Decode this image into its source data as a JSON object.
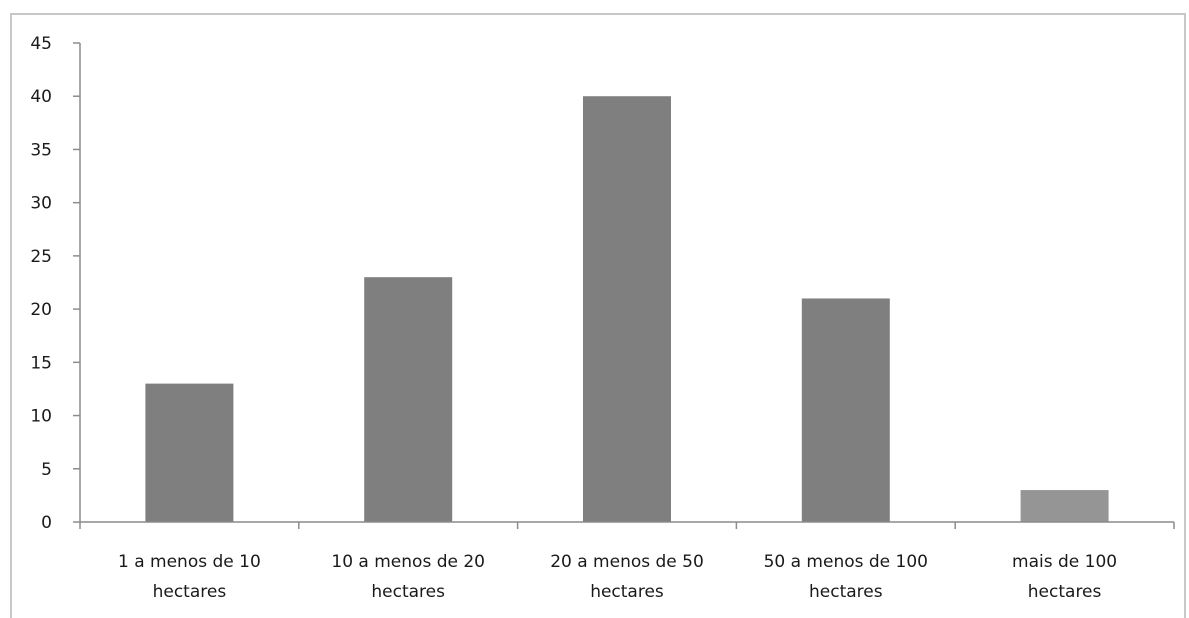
{
  "chart_data": {
    "type": "bar",
    "categories": [
      [
        "1 a menos de 10",
        "hectares"
      ],
      [
        "10 a menos de 20",
        "hectares"
      ],
      [
        "20 a menos de 50",
        "hectares"
      ],
      [
        "50 a menos de 100",
        "hectares"
      ],
      [
        "mais de 100",
        "hectares"
      ]
    ],
    "values": [
      13,
      23,
      40,
      21,
      3
    ],
    "bar_colors": [
      "#7f7f7f",
      "#7f7f7f",
      "#7f7f7f",
      "#7f7f7f",
      "#959595"
    ],
    "ylim": [
      0,
      45
    ],
    "yticks": [
      0,
      5,
      10,
      15,
      20,
      25,
      30,
      35,
      40,
      45
    ],
    "title": "",
    "xlabel": "",
    "ylabel": "",
    "grid": false,
    "legend": "none"
  }
}
